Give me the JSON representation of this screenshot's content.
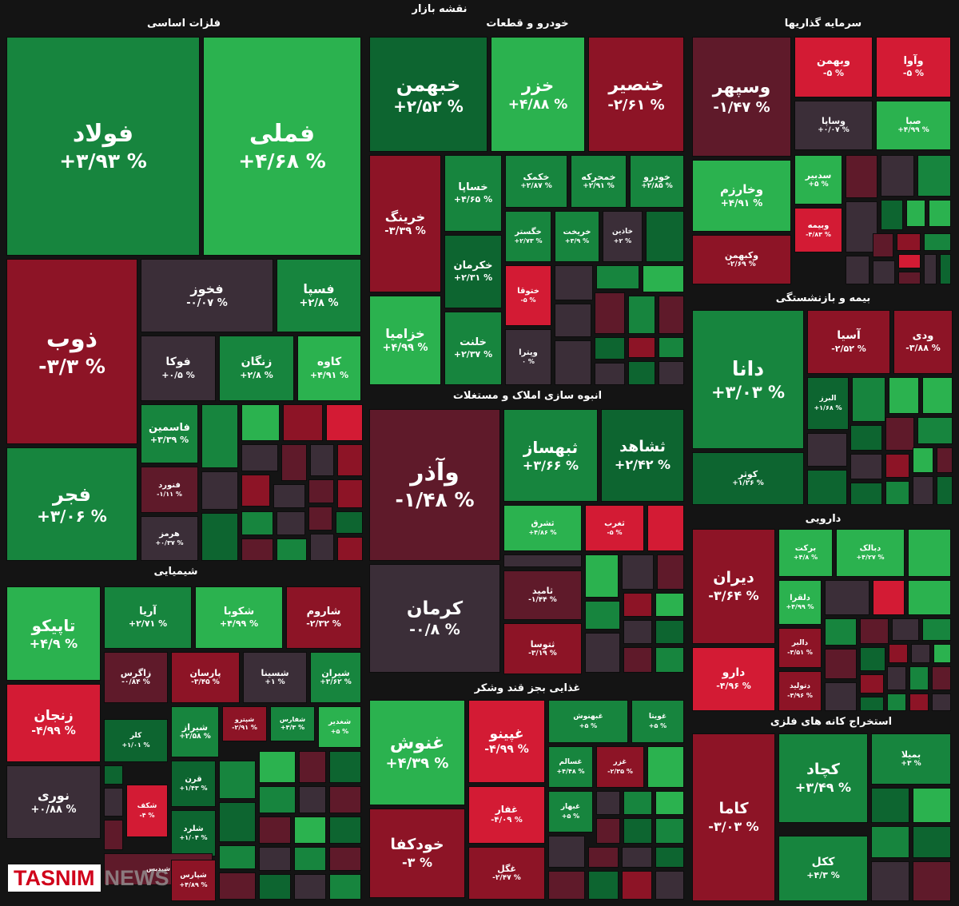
{
  "title": "نقشه بازار",
  "brand": {
    "logo": "TASNIM",
    "suffix": "NEWS"
  },
  "colors": {
    "bg": "#141414",
    "G1": "#2bb24f",
    "G2": "#17853e",
    "G3": "#0d6530",
    "N": "#3b2e38",
    "R1": "#5f1a2a",
    "R2": "#8d1426",
    "R3": "#d31b34"
  },
  "sections": [
    {
      "name": "فلزات اساسی"
    },
    {
      "name": "خودرو و قطعات"
    },
    {
      "name": "سرمایه گذاریها"
    },
    {
      "name": "انبوه سازی املاک و مستغلات"
    },
    {
      "name": "بیمه و بازنشستگی"
    },
    {
      "name": "شیمیایی"
    },
    {
      "name": "دارویی"
    },
    {
      "name": "غذایی بجز قند وشکر"
    },
    {
      "name": "استخراج کانه های فلزی"
    }
  ],
  "chart_data": {
    "type": "treemap",
    "title": "نقشه بازار",
    "value_unit": "%",
    "tiles": [
      {
        "name": "فولاد",
        "value": "+۳/۹۳ %",
        "color": "G2"
      },
      {
        "name": "فملی",
        "value": "+۴/۶۸ %",
        "color": "G1"
      },
      {
        "name": "ذوب",
        "value": "-۳/۳ %",
        "color": "R2"
      },
      {
        "name": "فجر",
        "value": "+۳/۰۶ %",
        "color": "G2"
      },
      {
        "name": "فخوز",
        "value": "-۰/۰۷ %",
        "color": "N"
      },
      {
        "name": "فسپا",
        "value": "+۲/۸ %",
        "color": "G2"
      },
      {
        "name": "فوکا",
        "value": "+۰/۵ %",
        "color": "N"
      },
      {
        "name": "زنگان",
        "value": "+۲/۸ %",
        "color": "G2"
      },
      {
        "name": "کاوه",
        "value": "+۴/۹۱ %",
        "color": "G1"
      },
      {
        "name": "فاسمین",
        "value": "+۳/۳۹ %",
        "color": "G2"
      },
      {
        "name": "فنورد",
        "value": "-۱/۱۱ %",
        "color": "R1"
      },
      {
        "name": "هرمز",
        "value": "+۰/۳۷ %",
        "color": "N"
      },
      {
        "name": "خبهمن",
        "value": "+۲/۵۲ %",
        "color": "G3"
      },
      {
        "name": "خزر",
        "value": "+۴/۸۸ %",
        "color": "G1"
      },
      {
        "name": "خنصیر",
        "value": "-۲/۶۱ %",
        "color": "R2"
      },
      {
        "name": "خرینگ",
        "value": "-۳/۳۹ %",
        "color": "R2"
      },
      {
        "name": "خساپا",
        "value": "+۴/۶۵ %",
        "color": "G2"
      },
      {
        "name": "خکمک",
        "value": "+۲/۸۷ %",
        "color": "G2"
      },
      {
        "name": "خمحرکه",
        "value": "+۲/۹۱ %",
        "color": "G2"
      },
      {
        "name": "خودرو",
        "value": "+۲/۸۵ %",
        "color": "G2"
      },
      {
        "name": "خگستر",
        "value": "+۲/۷۳ %",
        "color": "G2"
      },
      {
        "name": "خریخت",
        "value": "+۳/۹ %",
        "color": "G2"
      },
      {
        "name": "خاذین",
        "value": "+۲ %",
        "color": "N"
      },
      {
        "name": "خکرمان",
        "value": "+۲/۳۱ %",
        "color": "G3"
      },
      {
        "name": "خزامیا",
        "value": "+۴/۹۹ %",
        "color": "G1"
      },
      {
        "name": "ختوقا",
        "value": "-۵ %",
        "color": "R3"
      },
      {
        "name": "خلنت",
        "value": "+۲/۳۷ %",
        "color": "G2"
      },
      {
        "name": "وپترا",
        "value": "۰ %",
        "color": "N"
      },
      {
        "name": "وسپهر",
        "value": "-۱/۴۷ %",
        "color": "R1"
      },
      {
        "name": "وبهمن",
        "value": "-۵ %",
        "color": "R3"
      },
      {
        "name": "وآوا",
        "value": "-۵ %",
        "color": "R3"
      },
      {
        "name": "وساپا",
        "value": "+۰/۰۷ %",
        "color": "N"
      },
      {
        "name": "صبا",
        "value": "+۴/۹۹ %",
        "color": "G1"
      },
      {
        "name": "وخارزم",
        "value": "+۴/۹۱ %",
        "color": "G1"
      },
      {
        "name": "سدبیر",
        "value": "+۵ %",
        "color": "G1"
      },
      {
        "name": "وبیمه",
        "value": "-۴/۸۳ %",
        "color": "R3"
      },
      {
        "name": "وکبهمن",
        "value": "-۲/۶۹ %",
        "color": "R2"
      },
      {
        "name": "وآذر",
        "value": "-۱/۴۸ %",
        "color": "R1"
      },
      {
        "name": "ثبهساز",
        "value": "+۳/۶۶ %",
        "color": "G2"
      },
      {
        "name": "ثشاهد",
        "value": "+۲/۴۲ %",
        "color": "G3"
      },
      {
        "name": "ثشرق",
        "value": "+۴/۸۶ %",
        "color": "G1"
      },
      {
        "name": "ثغرب",
        "value": "-۵ %",
        "color": "R3"
      },
      {
        "name": "کرمان",
        "value": "-۰/۸ %",
        "color": "N"
      },
      {
        "name": "ثامید",
        "value": "-۱/۴۴ %",
        "color": "R1"
      },
      {
        "name": "ثتوسا",
        "value": "-۳/۱۹ %",
        "color": "R2"
      },
      {
        "name": "دانا",
        "value": "+۳/۰۳ %",
        "color": "G2"
      },
      {
        "name": "آسیا",
        "value": "-۲/۵۲ %",
        "color": "R2"
      },
      {
        "name": "ودی",
        "value": "-۳/۸۸ %",
        "color": "R2"
      },
      {
        "name": "البرز",
        "value": "+۱/۶۸ %",
        "color": "G3"
      },
      {
        "name": "کوثر",
        "value": "+۱/۲۶ %",
        "color": "G3"
      },
      {
        "name": "تاپیکو",
        "value": "+۴/۹ %",
        "color": "G1"
      },
      {
        "name": "آریا",
        "value": "+۲/۷۱ %",
        "color": "G2"
      },
      {
        "name": "شکوبا",
        "value": "+۴/۹۹ %",
        "color": "G1"
      },
      {
        "name": "شاروم",
        "value": "-۲/۳۲ %",
        "color": "R2"
      },
      {
        "name": "زاگرس",
        "value": "-۰/۸۴ %",
        "color": "R1"
      },
      {
        "name": "پارسان",
        "value": "-۳/۴۵ %",
        "color": "R2"
      },
      {
        "name": "شسینا",
        "value": "+۱ %",
        "color": "N"
      },
      {
        "name": "شیران",
        "value": "+۳/۶۲ %",
        "color": "G2"
      },
      {
        "name": "زنجان",
        "value": "-۴/۹۹ %",
        "color": "R3"
      },
      {
        "name": "کلر",
        "value": "+۱/۰۱ %",
        "color": "G3"
      },
      {
        "name": "شیراز",
        "value": "+۲/۵۸ %",
        "color": "G2"
      },
      {
        "name": "شپترو",
        "value": "-۲/۹۱ %",
        "color": "R2"
      },
      {
        "name": "شفارس",
        "value": "+۳/۳ %",
        "color": "G2"
      },
      {
        "name": "شغدیر",
        "value": "+۵ %",
        "color": "G1"
      },
      {
        "name": "نوری",
        "value": "+۰/۸۸ %",
        "color": "N"
      },
      {
        "name": "قرن",
        "value": "+۱/۴۳ %",
        "color": "G3"
      },
      {
        "name": "شکف",
        "value": "-۴ %",
        "color": "R3"
      },
      {
        "name": "شلرد",
        "value": "+۱/۰۴ %",
        "color": "G3"
      },
      {
        "name": "شپدیس",
        "value": "",
        "color": "R1"
      },
      {
        "name": "شپارس",
        "value": "+۴/۸۹ %",
        "color": "R2"
      },
      {
        "name": "دیران",
        "value": "-۳/۶۴ %",
        "color": "R2"
      },
      {
        "name": "برکت",
        "value": "+۴/۸ %",
        "color": "G1"
      },
      {
        "name": "دبالک",
        "value": "+۴/۲۷ %",
        "color": "G1"
      },
      {
        "name": "دلقرا",
        "value": "+۴/۹۹ %",
        "color": "G1"
      },
      {
        "name": "دالبر",
        "value": "-۳/۵۱ %",
        "color": "R2"
      },
      {
        "name": "دارو",
        "value": "-۴/۹۶ %",
        "color": "R3"
      },
      {
        "name": "دتولید",
        "value": "-۳/۹۶ %",
        "color": "R2"
      },
      {
        "name": "غنوش",
        "value": "+۴/۳۹ %",
        "color": "G1"
      },
      {
        "name": "غپینو",
        "value": "-۴/۹۹ %",
        "color": "R3"
      },
      {
        "name": "غبهنوش",
        "value": "+۵ %",
        "color": "G2"
      },
      {
        "name": "غویتا",
        "value": "+۵ %",
        "color": "G2"
      },
      {
        "name": "غسالم",
        "value": "+۴/۴۸ %",
        "color": "G2"
      },
      {
        "name": "غزر",
        "value": "-۲/۳۵ %",
        "color": "R2"
      },
      {
        "name": "غبهار",
        "value": "+۵ %",
        "color": "G2"
      },
      {
        "name": "غفار",
        "value": "-۴/۰۹ %",
        "color": "R3"
      },
      {
        "name": "خودکفا",
        "value": "-۳ %",
        "color": "R2"
      },
      {
        "name": "غگل",
        "value": "-۲/۴۷ %",
        "color": "R2"
      },
      {
        "name": "کچاد",
        "value": "+۳/۴۹ %",
        "color": "G2"
      },
      {
        "name": "بمیلا",
        "value": "+۳ %",
        "color": "G2"
      },
      {
        "name": "کاما",
        "value": "-۳/۰۳ %",
        "color": "R2"
      },
      {
        "name": "ککل",
        "value": "+۴/۳ %",
        "color": "G2"
      }
    ]
  }
}
